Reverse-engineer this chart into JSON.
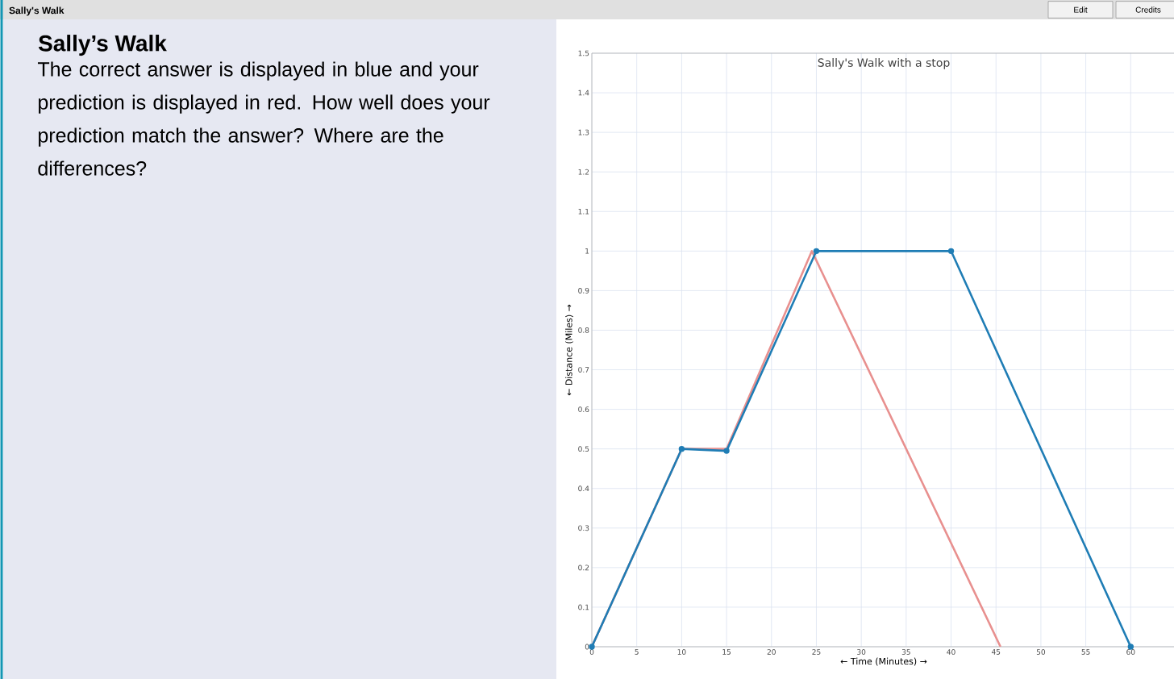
{
  "chart_data": {
    "type": "line",
    "title": "Sally's Walk with a stop",
    "xlabel": "← Time (Minutes) →",
    "ylabel": "← Distance (Miles) →",
    "annotations": [
      "Sally's Walk",
      "Edit",
      "Credits",
      "Sally’s Walk",
      "The correct answer is displayed in blue and your prediction is displayed in red. How well does your prediction match the answer? Where are the differences?"
    ],
    "series": [
      {
        "color": "#e8908f",
        "marker": "none",
        "x": [
          0,
          10,
          15,
          24.5,
          45.5
        ],
        "values": [
          0,
          0.5,
          0.5,
          1,
          0
        ]
      },
      {
        "color": "#1f7db5",
        "marker": "circle",
        "x": [
          0,
          10,
          15,
          25,
          40,
          60
        ],
        "values": [
          0,
          0.5,
          0.495,
          1,
          1,
          0
        ]
      }
    ],
    "xlim": [
      0,
      65
    ],
    "xticks": [
      0,
      5,
      10,
      15,
      20,
      25,
      30,
      35,
      40,
      45,
      50,
      55,
      60
    ],
    "ylim": [
      0,
      1.5
    ],
    "yticks": [
      0,
      0.1,
      0.2,
      0.3,
      0.4,
      0.5,
      0.6,
      0.7,
      0.8,
      0.9,
      1,
      1.1,
      1.2,
      1.3,
      1.4,
      1.5
    ],
    "grid": true
  }
}
